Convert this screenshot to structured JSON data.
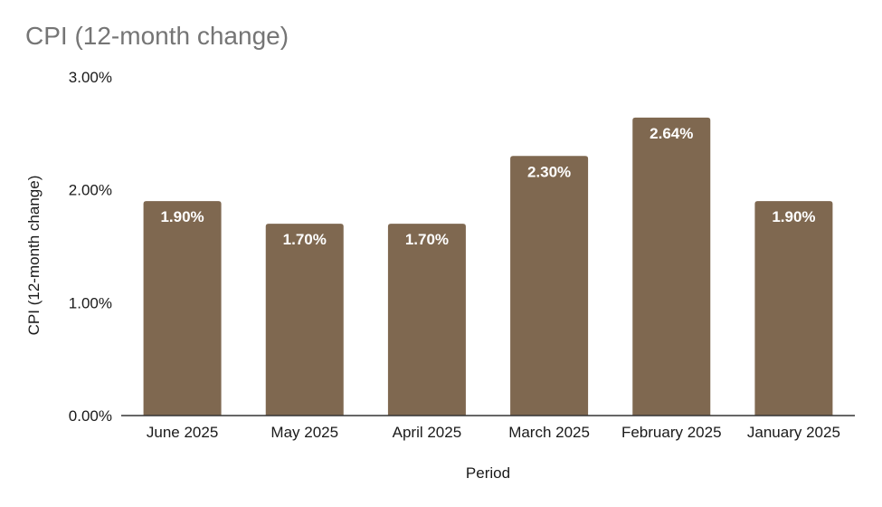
{
  "chart_data": {
    "type": "bar",
    "title": "CPI (12-month change)",
    "xlabel": "Period",
    "ylabel": "CPI (12-month change)",
    "categories": [
      "June 2025",
      "May 2025",
      "April 2025",
      "March 2025",
      "February 2025",
      "January 2025"
    ],
    "values": [
      1.9,
      1.7,
      1.7,
      2.3,
      2.64,
      1.9
    ],
    "data_labels": [
      "1.90%",
      "1.70%",
      "1.70%",
      "2.30%",
      "2.64%",
      "1.90%"
    ],
    "ylim": [
      0,
      3
    ],
    "yticks": [
      0,
      1,
      2,
      3
    ],
    "ytick_labels": [
      "0.00%",
      "1.00%",
      "2.00%",
      "3.00%"
    ],
    "grid": false,
    "legend": "none",
    "bar_color": "#7f6850"
  }
}
